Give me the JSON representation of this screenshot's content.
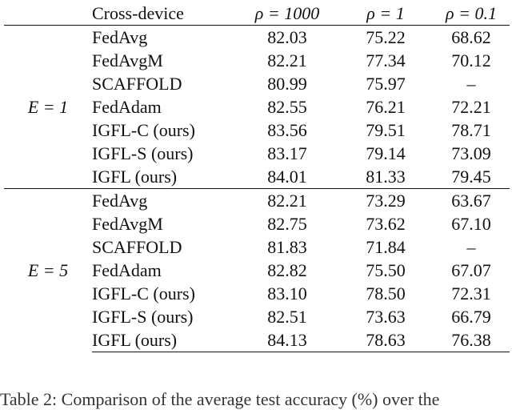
{
  "header": {
    "col_method": "Cross-device",
    "rho_cols": [
      "ρ = 1000",
      "ρ = 1",
      "ρ = 0.1"
    ]
  },
  "groups": [
    {
      "label": "E = 1",
      "rows": [
        {
          "method": "FedAvg",
          "values": [
            "82.03",
            "75.22",
            "68.62"
          ],
          "bold": [
            false,
            false,
            false
          ]
        },
        {
          "method": "FedAvgM",
          "values": [
            "82.21",
            "77.34",
            "70.12"
          ],
          "bold": [
            false,
            false,
            false
          ]
        },
        {
          "method": "SCAFFOLD",
          "values": [
            "80.99",
            "75.97",
            "–"
          ],
          "bold": [
            false,
            false,
            false
          ]
        },
        {
          "method": "FedAdam",
          "values": [
            "82.55",
            "76.21",
            "72.21"
          ],
          "bold": [
            false,
            false,
            false
          ]
        },
        {
          "method": "IGFL-C (ours)",
          "values": [
            "83.56",
            "79.51",
            "78.71"
          ],
          "bold": [
            false,
            false,
            false
          ]
        },
        {
          "method": "IGFL-S (ours)",
          "values": [
            "83.17",
            "79.14",
            "73.09"
          ],
          "bold": [
            false,
            false,
            false
          ]
        },
        {
          "method": "IGFL (ours)",
          "values": [
            "84.01",
            "81.33",
            "79.45"
          ],
          "bold": [
            true,
            true,
            true
          ]
        }
      ]
    },
    {
      "label": "E = 5",
      "rows": [
        {
          "method": "FedAvg",
          "values": [
            "82.21",
            "73.29",
            "63.67"
          ],
          "bold": [
            false,
            false,
            false
          ]
        },
        {
          "method": "FedAvgM",
          "values": [
            "82.75",
            "73.62",
            "67.10"
          ],
          "bold": [
            false,
            false,
            false
          ]
        },
        {
          "method": "SCAFFOLD",
          "values": [
            "81.83",
            "71.84",
            "–"
          ],
          "bold": [
            false,
            false,
            false
          ]
        },
        {
          "method": "FedAdam",
          "values": [
            "82.82",
            "75.50",
            "67.07"
          ],
          "bold": [
            false,
            false,
            false
          ]
        },
        {
          "method": "IGFL-C (ours)",
          "values": [
            "83.10",
            "78.50",
            "72.31"
          ],
          "bold": [
            false,
            false,
            false
          ]
        },
        {
          "method": "IGFL-S (ours)",
          "values": [
            "82.51",
            "73.63",
            "66.79"
          ],
          "bold": [
            false,
            false,
            false
          ]
        },
        {
          "method": "IGFL (ours)",
          "values": [
            "84.13",
            "78.63",
            "76.38"
          ],
          "bold": [
            true,
            true,
            true
          ]
        }
      ]
    }
  ],
  "caption": "Table 2: Comparison of the average test accuracy (%) over the"
}
